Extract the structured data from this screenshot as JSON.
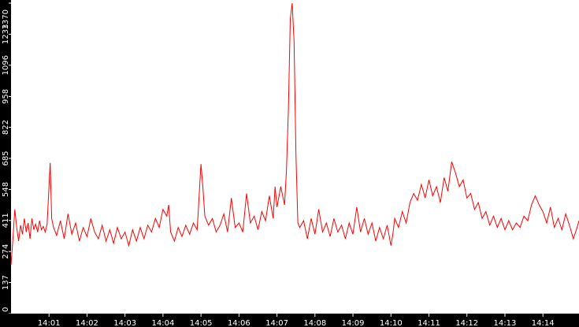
{
  "chart_data": {
    "type": "line",
    "title": "",
    "xlabel": "",
    "ylabel": "",
    "x_unit": "minute",
    "x_start": "14:00.00",
    "x_end": "14:14.95",
    "ylim": [
      0,
      1370
    ],
    "y_ticks": [
      "0",
      "137",
      "274",
      "411",
      "548",
      "685",
      "822",
      "958",
      "1096",
      "1233",
      "1370"
    ],
    "x_ticks": [
      "14:01",
      "14:02",
      "14:03",
      "14:04",
      "14:05",
      "14:06",
      "14:07",
      "14:08",
      "14:09",
      "14:10",
      "14:11",
      "14:12",
      "14:13",
      "14:14"
    ],
    "grid": false,
    "legend": "none",
    "series": [
      {
        "color": "#ff0000",
        "points": [
          [
            0.0,
            215
          ],
          [
            0.05,
            330
          ],
          [
            0.1,
            460
          ],
          [
            0.15,
            380
          ],
          [
            0.2,
            320
          ],
          [
            0.25,
            390
          ],
          [
            0.3,
            350
          ],
          [
            0.35,
            420
          ],
          [
            0.4,
            360
          ],
          [
            0.45,
            400
          ],
          [
            0.5,
            330
          ],
          [
            0.55,
            420
          ],
          [
            0.6,
            370
          ],
          [
            0.65,
            395
          ],
          [
            0.7,
            360
          ],
          [
            0.75,
            410
          ],
          [
            0.8,
            370
          ],
          [
            0.85,
            385
          ],
          [
            0.9,
            360
          ],
          [
            0.95,
            395
          ],
          [
            1.0,
            560
          ],
          [
            1.03,
            665
          ],
          [
            1.07,
            420
          ],
          [
            1.12,
            380
          ],
          [
            1.2,
            345
          ],
          [
            1.3,
            410
          ],
          [
            1.4,
            330
          ],
          [
            1.5,
            440
          ],
          [
            1.6,
            350
          ],
          [
            1.7,
            400
          ],
          [
            1.8,
            320
          ],
          [
            1.9,
            380
          ],
          [
            2.0,
            340
          ],
          [
            2.1,
            420
          ],
          [
            2.2,
            360
          ],
          [
            2.3,
            330
          ],
          [
            2.4,
            390
          ],
          [
            2.5,
            320
          ],
          [
            2.6,
            370
          ],
          [
            2.7,
            310
          ],
          [
            2.8,
            380
          ],
          [
            2.9,
            330
          ],
          [
            3.0,
            360
          ],
          [
            3.1,
            300
          ],
          [
            3.2,
            370
          ],
          [
            3.3,
            320
          ],
          [
            3.4,
            380
          ],
          [
            3.5,
            330
          ],
          [
            3.6,
            390
          ],
          [
            3.7,
            360
          ],
          [
            3.8,
            420
          ],
          [
            3.9,
            380
          ],
          [
            4.0,
            460
          ],
          [
            4.1,
            430
          ],
          [
            4.15,
            480
          ],
          [
            4.2,
            360
          ],
          [
            4.3,
            320
          ],
          [
            4.4,
            380
          ],
          [
            4.5,
            340
          ],
          [
            4.6,
            390
          ],
          [
            4.7,
            350
          ],
          [
            4.8,
            400
          ],
          [
            4.9,
            370
          ],
          [
            5.0,
            660
          ],
          [
            5.05,
            560
          ],
          [
            5.1,
            430
          ],
          [
            5.2,
            390
          ],
          [
            5.3,
            420
          ],
          [
            5.4,
            360
          ],
          [
            5.5,
            390
          ],
          [
            5.6,
            440
          ],
          [
            5.7,
            360
          ],
          [
            5.8,
            510
          ],
          [
            5.9,
            380
          ],
          [
            6.0,
            400
          ],
          [
            6.1,
            360
          ],
          [
            6.2,
            530
          ],
          [
            6.3,
            400
          ],
          [
            6.4,
            430
          ],
          [
            6.5,
            370
          ],
          [
            6.6,
            450
          ],
          [
            6.7,
            410
          ],
          [
            6.8,
            520
          ],
          [
            6.9,
            420
          ],
          [
            6.95,
            560
          ],
          [
            7.0,
            470
          ],
          [
            7.1,
            560
          ],
          [
            7.2,
            480
          ],
          [
            7.25,
            630
          ],
          [
            7.3,
            900
          ],
          [
            7.35,
            1300
          ],
          [
            7.4,
            1370
          ],
          [
            7.45,
            1200
          ],
          [
            7.5,
            700
          ],
          [
            7.55,
            400
          ],
          [
            7.6,
            380
          ],
          [
            7.7,
            410
          ],
          [
            7.8,
            330
          ],
          [
            7.9,
            420
          ],
          [
            8.0,
            350
          ],
          [
            8.1,
            460
          ],
          [
            8.2,
            360
          ],
          [
            8.3,
            400
          ],
          [
            8.4,
            340
          ],
          [
            8.5,
            420
          ],
          [
            8.6,
            360
          ],
          [
            8.7,
            390
          ],
          [
            8.8,
            330
          ],
          [
            8.9,
            400
          ],
          [
            9.0,
            350
          ],
          [
            9.1,
            470
          ],
          [
            9.2,
            360
          ],
          [
            9.3,
            420
          ],
          [
            9.4,
            350
          ],
          [
            9.5,
            400
          ],
          [
            9.6,
            320
          ],
          [
            9.7,
            380
          ],
          [
            9.8,
            330
          ],
          [
            9.9,
            390
          ],
          [
            10.0,
            300
          ],
          [
            10.05,
            350
          ],
          [
            10.1,
            420
          ],
          [
            10.2,
            380
          ],
          [
            10.3,
            450
          ],
          [
            10.4,
            400
          ],
          [
            10.5,
            490
          ],
          [
            10.6,
            530
          ],
          [
            10.7,
            500
          ],
          [
            10.8,
            570
          ],
          [
            10.9,
            510
          ],
          [
            11.0,
            590
          ],
          [
            11.1,
            520
          ],
          [
            11.2,
            560
          ],
          [
            11.3,
            490
          ],
          [
            11.4,
            600
          ],
          [
            11.5,
            540
          ],
          [
            11.6,
            670
          ],
          [
            11.7,
            620
          ],
          [
            11.8,
            560
          ],
          [
            11.9,
            590
          ],
          [
            12.0,
            510
          ],
          [
            12.1,
            530
          ],
          [
            12.2,
            460
          ],
          [
            12.3,
            490
          ],
          [
            12.4,
            420
          ],
          [
            12.5,
            450
          ],
          [
            12.6,
            390
          ],
          [
            12.7,
            430
          ],
          [
            12.8,
            380
          ],
          [
            12.9,
            420
          ],
          [
            13.0,
            370
          ],
          [
            13.1,
            410
          ],
          [
            13.2,
            370
          ],
          [
            13.3,
            400
          ],
          [
            13.4,
            380
          ],
          [
            13.5,
            430
          ],
          [
            13.6,
            410
          ],
          [
            13.7,
            480
          ],
          [
            13.8,
            520
          ],
          [
            13.9,
            480
          ],
          [
            14.0,
            450
          ],
          [
            14.1,
            400
          ],
          [
            14.2,
            470
          ],
          [
            14.3,
            380
          ],
          [
            14.4,
            420
          ],
          [
            14.5,
            370
          ],
          [
            14.6,
            440
          ],
          [
            14.7,
            390
          ],
          [
            14.8,
            330
          ],
          [
            14.9,
            380
          ],
          [
            14.95,
            410
          ]
        ]
      }
    ]
  }
}
